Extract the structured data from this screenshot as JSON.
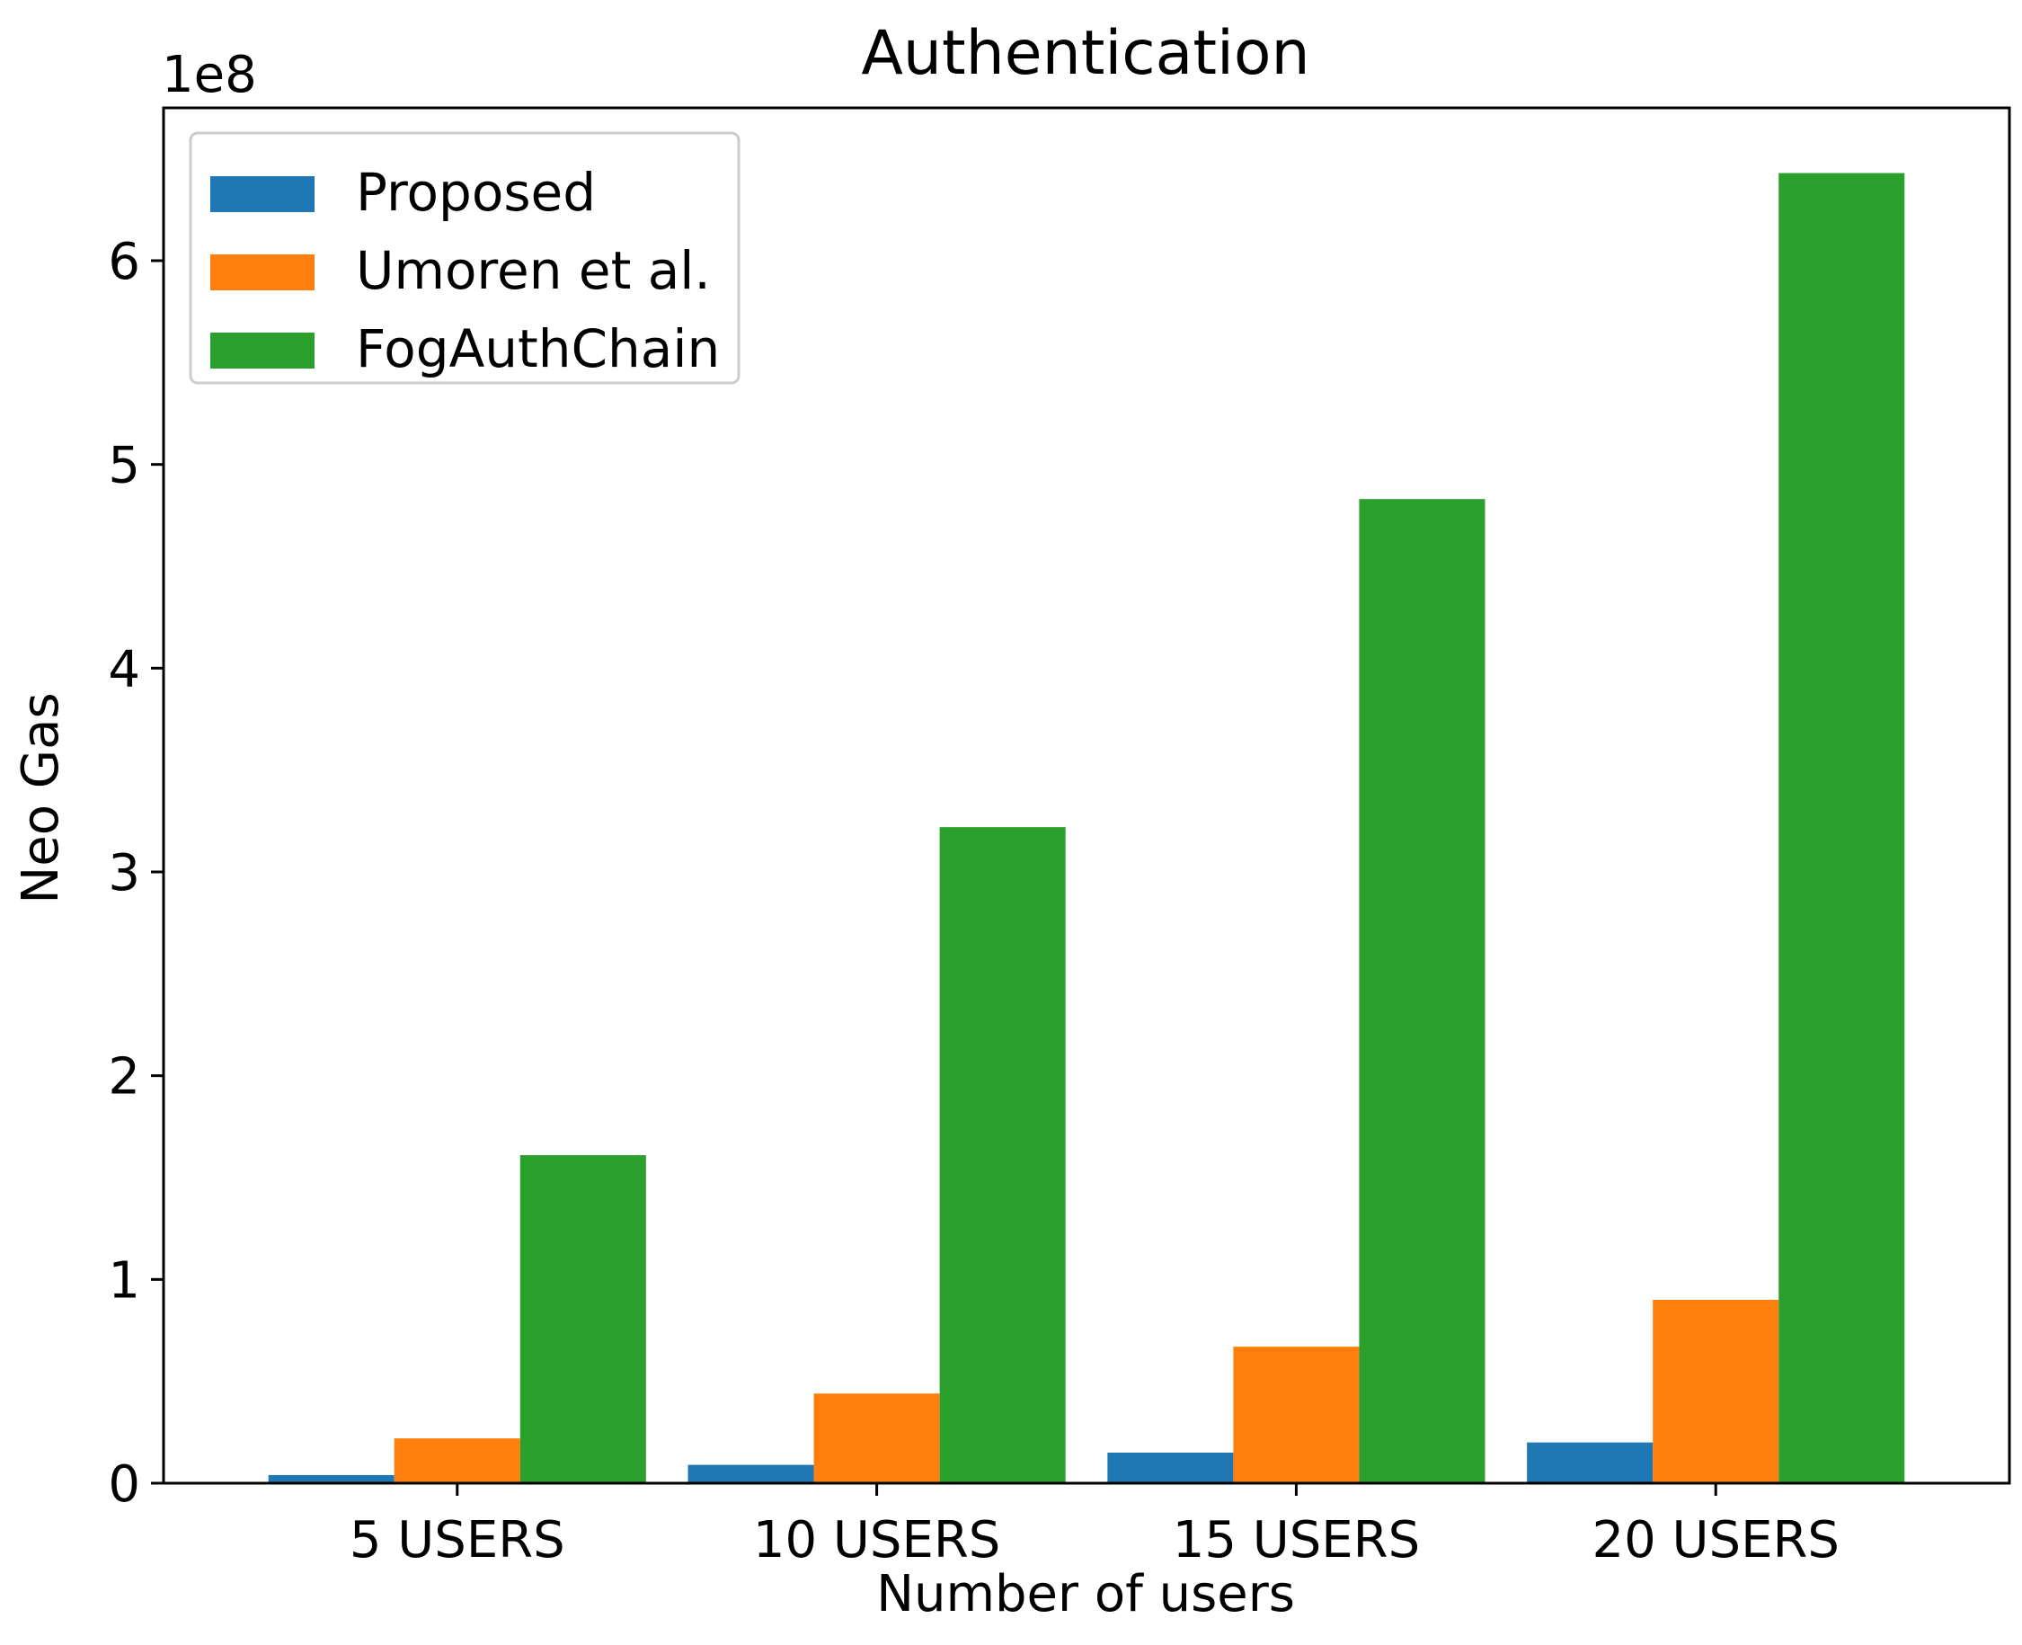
{
  "chart_data": {
    "type": "bar",
    "title": "Authentication",
    "xlabel": "Number of users",
    "ylabel": "Neo Gas",
    "y_offset_label": "1e8",
    "y_scale": 100000000,
    "ylim": [
      0,
      6.75
    ],
    "yticks": [
      0,
      1,
      2,
      3,
      4,
      5,
      6
    ],
    "categories": [
      "5 USERS",
      "10 USERS",
      "15 USERS",
      "20 USERS"
    ],
    "series": [
      {
        "name": "Proposed",
        "color": "#1f77b4",
        "values": [
          0.04,
          0.09,
          0.15,
          0.2
        ]
      },
      {
        "name": "Umoren et al.",
        "color": "#ff7f0e",
        "values": [
          0.22,
          0.44,
          0.67,
          0.9
        ]
      },
      {
        "name": "FogAuthChain",
        "color": "#2ca02c",
        "values": [
          1.61,
          3.22,
          4.83,
          6.43
        ]
      }
    ],
    "legend_position": "upper-left",
    "grid": false
  }
}
